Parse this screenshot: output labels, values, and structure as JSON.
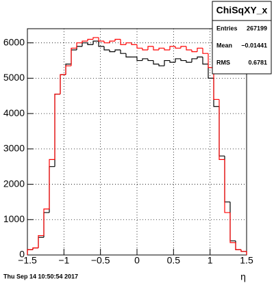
{
  "chart_data": {
    "type": "histogram",
    "x_label": "η",
    "timestamp": "Thu Sep 14 10:50:54 2017",
    "stats": {
      "title": "ChiSqXY_x",
      "rows": [
        [
          "Entries",
          "267199"
        ],
        [
          "Mean",
          "−0.01441"
        ],
        [
          "RMS",
          "0.6781"
        ]
      ]
    },
    "bins": [
      -1.5,
      -1.425,
      -1.35,
      -1.275,
      -1.2,
      -1.125,
      -1.05,
      -0.975,
      -0.9,
      -0.825,
      -0.75,
      -0.675,
      -0.6,
      -0.525,
      -0.45,
      -0.375,
      -0.3,
      -0.225,
      -0.15,
      -0.075,
      0,
      0.075,
      0.15,
      0.225,
      0.3,
      0.375,
      0.45,
      0.525,
      0.6,
      0.675,
      0.75,
      0.825,
      0.9,
      0.975,
      1.05,
      1.125,
      1.2,
      1.275,
      1.35,
      1.425,
      1.5
    ],
    "series": [
      {
        "color": "#000000",
        "values": [
          150,
          200,
          500,
          1200,
          2500,
          4550,
          5100,
          5400,
          5800,
          5900,
          6000,
          5950,
          6050,
          5900,
          5800,
          5750,
          5800,
          5700,
          5600,
          5600,
          5500,
          5550,
          5500,
          5400,
          5350,
          5500,
          5450,
          5550,
          5500,
          5450,
          5550,
          5600,
          5400,
          5000,
          4200,
          2800,
          1500,
          400,
          150,
          100
        ]
      },
      {
        "color": "#ff0000",
        "values": [
          150,
          200,
          550,
          1300,
          2700,
          4550,
          5100,
          5350,
          5850,
          6000,
          6050,
          6100,
          6150,
          6050,
          6000,
          6050,
          6100,
          5950,
          6000,
          5950,
          5850,
          5800,
          5900,
          5800,
          5850,
          5800,
          5900,
          5850,
          5900,
          5800,
          5750,
          5850,
          5700,
          5300,
          4400,
          2700,
          1200,
          350,
          150,
          100
        ]
      }
    ],
    "xlim": [
      -1.5,
      1.5
    ],
    "ylim": [
      0,
      6400
    ],
    "xticks": [
      {
        "value": -1.5,
        "label": "−1.5"
      },
      {
        "value": -1,
        "label": "−1"
      },
      {
        "value": -0.5,
        "label": "−0.5"
      },
      0,
      0.5,
      1,
      1.5
    ],
    "yticks": [
      0,
      1000,
      2000,
      3000,
      4000,
      5000,
      6000
    ],
    "grid": true
  }
}
